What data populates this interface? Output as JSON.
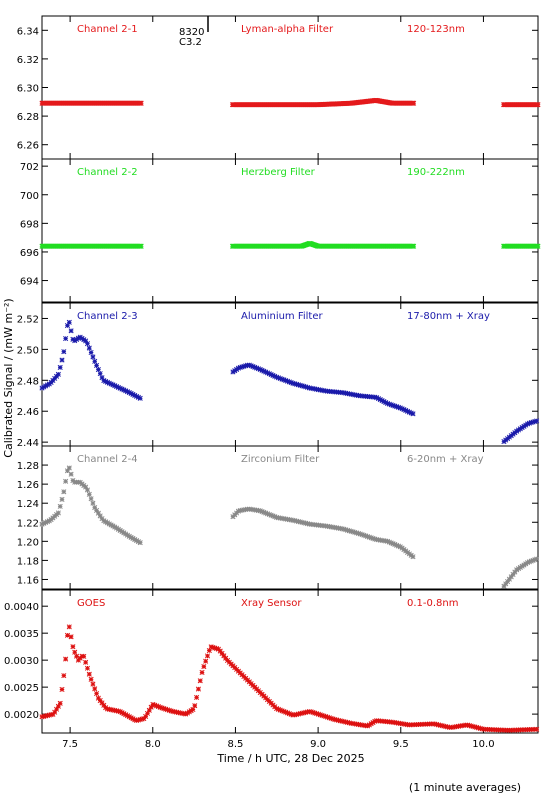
{
  "figure": {
    "ylabel": "Calibrated Signal / (mW m⁻²)",
    "xlabel": "Time / h UTC, 28 Dec 2025",
    "footnote": "(1 minute averages)",
    "marker_annotation": {
      "line1": "8320",
      "line2": "C3.2",
      "x": 8.33
    }
  },
  "chart_data": [
    {
      "type": "scatter",
      "channel": "Channel 2-1",
      "filter": "Lyman-alpha Filter",
      "band": "120-123nm",
      "color": "#e41a1c",
      "xlim": [
        7.33,
        10.33
      ],
      "ylim": [
        6.25,
        6.35
      ],
      "yticks": [
        6.26,
        6.28,
        6.3,
        6.32,
        6.34
      ],
      "yfmt": 2,
      "points": [
        [
          7.33,
          6.289
        ],
        [
          7.45,
          6.289
        ],
        [
          7.6,
          6.289
        ],
        [
          7.75,
          6.289
        ],
        [
          7.93,
          6.289
        ],
        [
          8.48,
          6.288
        ],
        [
          8.7,
          6.288
        ],
        [
          9.0,
          6.288
        ],
        [
          9.2,
          6.289
        ],
        [
          9.35,
          6.291
        ],
        [
          9.45,
          6.289
        ],
        [
          9.58,
          6.289
        ],
        [
          10.12,
          6.288
        ],
        [
          10.33,
          6.288
        ]
      ],
      "gaps": [
        [
          7.93,
          8.48
        ],
        [
          9.58,
          10.12
        ]
      ]
    },
    {
      "type": "scatter",
      "channel": "Channel 2-2",
      "filter": "Herzberg Filter",
      "band": "190-222nm",
      "color": "#22dd22",
      "xlim": [
        7.33,
        10.33
      ],
      "ylim": [
        692.5,
        702.5
      ],
      "yticks": [
        694,
        696,
        698,
        700,
        702
      ],
      "yfmt": 0,
      "points": [
        [
          7.33,
          696.4
        ],
        [
          7.6,
          696.4
        ],
        [
          7.93,
          696.4
        ],
        [
          8.48,
          696.4
        ],
        [
          8.9,
          696.4
        ],
        [
          8.95,
          696.6
        ],
        [
          9.0,
          696.4
        ],
        [
          9.58,
          696.4
        ],
        [
          10.12,
          696.4
        ],
        [
          10.33,
          696.4
        ]
      ],
      "gaps": [
        [
          7.93,
          8.48
        ],
        [
          9.58,
          10.12
        ]
      ]
    },
    {
      "type": "scatter",
      "channel": "Channel 2-3",
      "filter": "Aluminium Filter",
      "band": "17-80nm + Xray",
      "color": "#1a1aaa",
      "xlim": [
        7.33,
        10.33
      ],
      "ylim": [
        2.4375,
        2.53
      ],
      "yticks": [
        2.44,
        2.46,
        2.48,
        2.5,
        2.52
      ],
      "yfmt": 2,
      "points": [
        [
          7.33,
          2.475
        ],
        [
          7.38,
          2.478
        ],
        [
          7.43,
          2.484
        ],
        [
          7.46,
          2.497
        ],
        [
          7.49,
          2.52
        ],
        [
          7.52,
          2.505
        ],
        [
          7.56,
          2.508
        ],
        [
          7.6,
          2.505
        ],
        [
          7.65,
          2.492
        ],
        [
          7.7,
          2.48
        ],
        [
          7.78,
          2.476
        ],
        [
          7.86,
          2.472
        ],
        [
          7.93,
          2.468
        ],
        [
          8.48,
          2.485
        ],
        [
          8.52,
          2.488
        ],
        [
          8.58,
          2.49
        ],
        [
          8.65,
          2.487
        ],
        [
          8.75,
          2.482
        ],
        [
          8.85,
          2.478
        ],
        [
          8.95,
          2.475
        ],
        [
          9.05,
          2.473
        ],
        [
          9.15,
          2.472
        ],
        [
          9.25,
          2.47
        ],
        [
          9.35,
          2.469
        ],
        [
          9.42,
          2.465
        ],
        [
          9.5,
          2.462
        ],
        [
          9.58,
          2.458
        ],
        [
          10.12,
          2.44
        ],
        [
          10.2,
          2.447
        ],
        [
          10.27,
          2.452
        ],
        [
          10.33,
          2.454
        ]
      ],
      "gaps": [
        [
          7.93,
          8.48
        ],
        [
          9.58,
          10.12
        ]
      ]
    },
    {
      "type": "scatter",
      "channel": "Channel 2-4",
      "filter": "Zirconium Filter",
      "band": "6-20nm + Xray",
      "color": "#888888",
      "xlim": [
        7.33,
        10.33
      ],
      "ylim": [
        1.15,
        1.3
      ],
      "yticks": [
        1.16,
        1.18,
        1.2,
        1.22,
        1.24,
        1.26,
        1.28
      ],
      "yfmt": 2,
      "points": [
        [
          7.33,
          1.218
        ],
        [
          7.38,
          1.222
        ],
        [
          7.43,
          1.23
        ],
        [
          7.46,
          1.25
        ],
        [
          7.49,
          1.28
        ],
        [
          7.52,
          1.262
        ],
        [
          7.56,
          1.262
        ],
        [
          7.6,
          1.256
        ],
        [
          7.65,
          1.235
        ],
        [
          7.7,
          1.222
        ],
        [
          7.78,
          1.214
        ],
        [
          7.86,
          1.205
        ],
        [
          7.93,
          1.198
        ],
        [
          8.48,
          1.225
        ],
        [
          8.52,
          1.232
        ],
        [
          8.58,
          1.234
        ],
        [
          8.65,
          1.232
        ],
        [
          8.75,
          1.225
        ],
        [
          8.85,
          1.222
        ],
        [
          8.95,
          1.218
        ],
        [
          9.05,
          1.216
        ],
        [
          9.15,
          1.213
        ],
        [
          9.25,
          1.208
        ],
        [
          9.35,
          1.202
        ],
        [
          9.42,
          1.2
        ],
        [
          9.5,
          1.194
        ],
        [
          9.58,
          1.183
        ],
        [
          10.12,
          1.152
        ],
        [
          10.2,
          1.17
        ],
        [
          10.27,
          1.178
        ],
        [
          10.33,
          1.182
        ]
      ],
      "gaps": [
        [
          7.93,
          8.48
        ],
        [
          9.58,
          10.12
        ]
      ]
    },
    {
      "type": "scatter",
      "channel": "GOES",
      "filter": "Xray Sensor",
      "band": "0.1-0.8nm",
      "color": "#dd1111",
      "xlim": [
        7.33,
        10.33
      ],
      "ylim": [
        0.00165,
        0.0043
      ],
      "yticks": [
        0.002,
        0.0025,
        0.003,
        0.0035,
        0.004
      ],
      "yfmt": 4,
      "points": [
        [
          7.33,
          0.00195
        ],
        [
          7.4,
          0.002
        ],
        [
          7.44,
          0.0022
        ],
        [
          7.47,
          0.0029
        ],
        [
          7.49,
          0.0037
        ],
        [
          7.52,
          0.0032
        ],
        [
          7.55,
          0.003
        ],
        [
          7.58,
          0.0031
        ],
        [
          7.62,
          0.0027
        ],
        [
          7.67,
          0.0023
        ],
        [
          7.72,
          0.0021
        ],
        [
          7.8,
          0.00205
        ],
        [
          7.9,
          0.00188
        ],
        [
          7.95,
          0.00192
        ],
        [
          8.0,
          0.00218
        ],
        [
          8.05,
          0.00212
        ],
        [
          8.12,
          0.00205
        ],
        [
          8.2,
          0.002
        ],
        [
          8.25,
          0.0021
        ],
        [
          8.3,
          0.0028
        ],
        [
          8.35,
          0.00325
        ],
        [
          8.4,
          0.0032
        ],
        [
          8.45,
          0.003
        ],
        [
          8.55,
          0.0027
        ],
        [
          8.65,
          0.0024
        ],
        [
          8.75,
          0.0021
        ],
        [
          8.85,
          0.00198
        ],
        [
          8.95,
          0.00205
        ],
        [
          9.0,
          0.002
        ],
        [
          9.1,
          0.0019
        ],
        [
          9.2,
          0.00183
        ],
        [
          9.3,
          0.00178
        ],
        [
          9.35,
          0.00188
        ],
        [
          9.45,
          0.00185
        ],
        [
          9.55,
          0.0018
        ],
        [
          9.7,
          0.00182
        ],
        [
          9.8,
          0.00175
        ],
        [
          9.9,
          0.0018
        ],
        [
          10.0,
          0.00172
        ],
        [
          10.15,
          0.0017
        ],
        [
          10.33,
          0.00172
        ]
      ],
      "gaps": []
    }
  ],
  "xaxis": {
    "ticks": [
      7.5,
      8.0,
      8.5,
      9.0,
      9.5,
      10.0
    ],
    "xlim": [
      7.33,
      10.33
    ]
  }
}
